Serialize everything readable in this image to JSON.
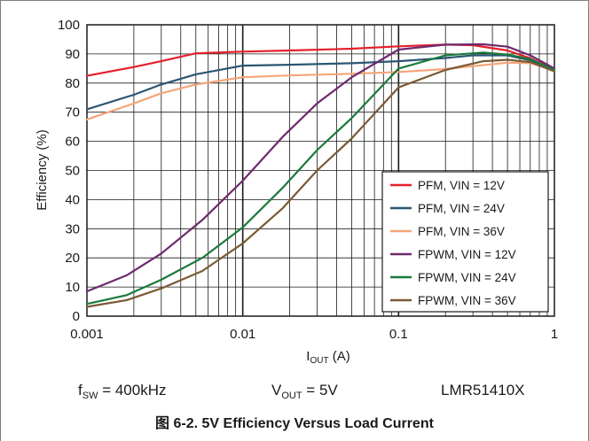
{
  "chart_data": {
    "type": "line",
    "x_scale": "log",
    "xlim": [
      0.001,
      1
    ],
    "ylim": [
      0,
      100
    ],
    "x_ticks": [
      "0.001",
      "0.01",
      "0.1",
      "1"
    ],
    "y_ticks": [
      "0",
      "10",
      "20",
      "30",
      "40",
      "50",
      "60",
      "70",
      "80",
      "90",
      "100"
    ],
    "xlabel": {
      "main": "I",
      "sub": "OUT",
      "unit": " (A)"
    },
    "ylabel": "Efficiency (%)",
    "grid": true,
    "legend_position": "bottom-right",
    "series": [
      {
        "name": "PFM, VIN = 12V",
        "color": "#e3212b",
        "x": [
          0.001,
          0.002,
          0.003,
          0.005,
          0.01,
          0.02,
          0.05,
          0.1,
          0.2,
          0.3,
          0.5,
          0.7,
          1
        ],
        "y": [
          82.5,
          85.5,
          87.5,
          90.2,
          90.8,
          91.2,
          91.8,
          92.6,
          93.2,
          93.0,
          91.2,
          88.5,
          84.5
        ]
      },
      {
        "name": "PFM, VIN = 24V",
        "color": "#2b5672",
        "x": [
          0.001,
          0.002,
          0.003,
          0.005,
          0.01,
          0.02,
          0.05,
          0.1,
          0.2,
          0.3,
          0.5,
          0.7,
          1
        ],
        "y": [
          71,
          76,
          79.5,
          83,
          86,
          86.3,
          86.8,
          87.5,
          88.6,
          89.5,
          89.5,
          87.8,
          84.5
        ]
      },
      {
        "name": "PFM, VIN = 36V",
        "color": "#f4a57a",
        "x": [
          0.001,
          0.002,
          0.003,
          0.005,
          0.01,
          0.02,
          0.05,
          0.1,
          0.2,
          0.3,
          0.5,
          0.7,
          1
        ],
        "y": [
          67.5,
          73,
          76.5,
          79.5,
          82,
          82.6,
          83.2,
          83.8,
          84.8,
          85.8,
          87,
          86.8,
          84.5
        ]
      },
      {
        "name": "FPWM, VIN = 12V",
        "color": "#6e2a6e",
        "x": [
          0.001,
          0.0018,
          0.003,
          0.0055,
          0.01,
          0.018,
          0.03,
          0.05,
          0.1,
          0.2,
          0.35,
          0.5,
          0.7,
          1
        ],
        "y": [
          8.5,
          14,
          21.5,
          33,
          46.5,
          61.5,
          73,
          82,
          91.5,
          93.2,
          93.3,
          92.5,
          89.5,
          85
        ]
      },
      {
        "name": "FPWM, VIN = 24V",
        "color": "#1a7a3c",
        "x": [
          0.001,
          0.0018,
          0.003,
          0.0055,
          0.01,
          0.018,
          0.03,
          0.05,
          0.1,
          0.2,
          0.35,
          0.5,
          0.7,
          1
        ],
        "y": [
          4.2,
          7.2,
          12.5,
          20,
          30.5,
          44,
          57,
          68,
          85,
          89.5,
          90.5,
          89.8,
          88.2,
          84.5
        ]
      },
      {
        "name": "FPWM, VIN = 36V",
        "color": "#7a5a33",
        "x": [
          0.001,
          0.0018,
          0.003,
          0.0055,
          0.01,
          0.018,
          0.03,
          0.05,
          0.1,
          0.2,
          0.35,
          0.5,
          0.7,
          1
        ],
        "y": [
          3.2,
          5.5,
          9.5,
          15.5,
          25,
          37,
          50,
          61,
          78.5,
          84.5,
          87.5,
          88,
          87.2,
          84
        ]
      }
    ]
  },
  "conditions": {
    "fsw": {
      "main": "f",
      "sub": "SW",
      "rest": " = 400kHz"
    },
    "vout": {
      "main": "V",
      "sub": "OUT",
      "rest": " = 5V"
    },
    "part": "LMR51410X"
  },
  "caption": "图 6-2. 5V Efficiency Versus Load Current"
}
